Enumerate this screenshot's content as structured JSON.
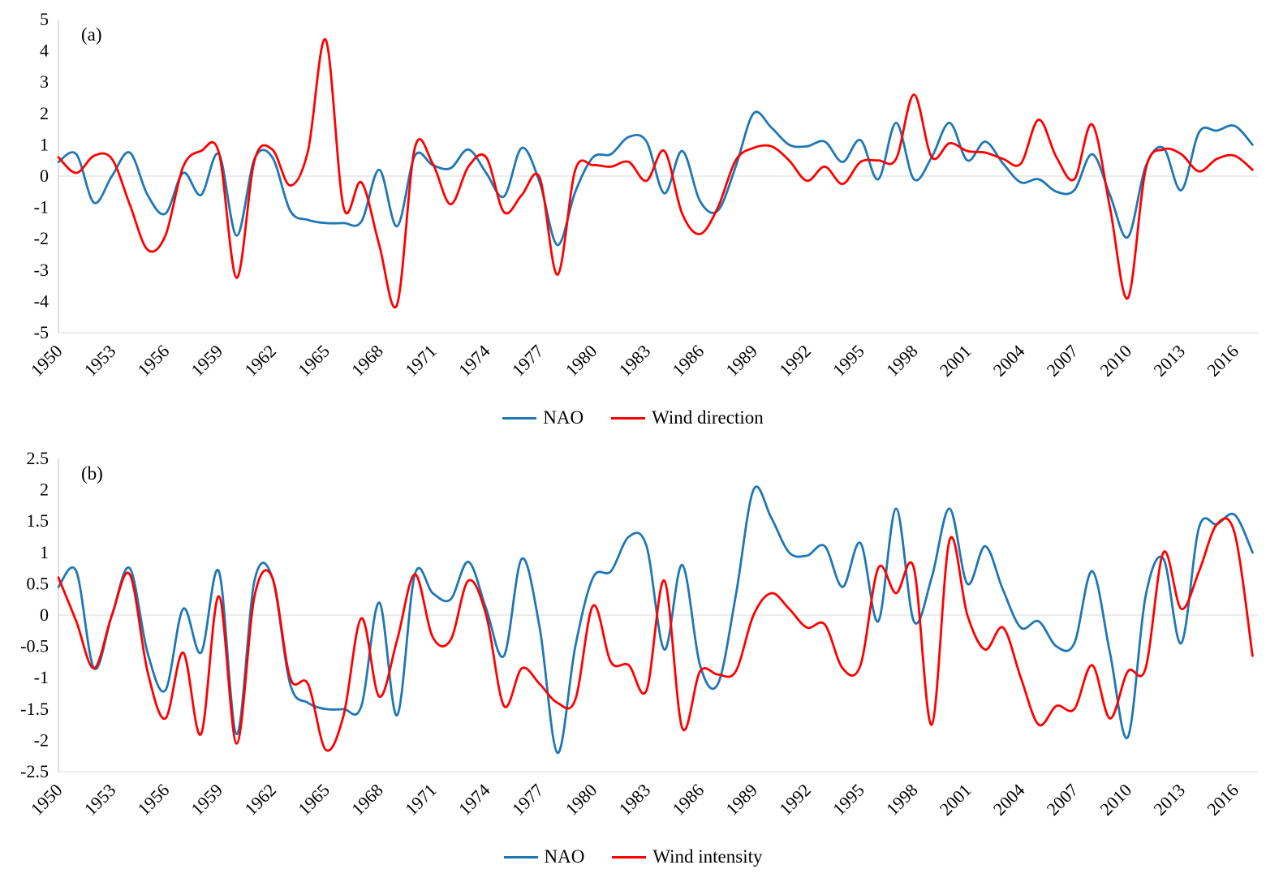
{
  "page": {
    "background": "#ffffff",
    "text_color": "#000000",
    "gridline_color": "#d9d9d9",
    "axis_color": "#bfbfbf"
  },
  "chart_data": [
    {
      "type": "line",
      "panel_label": "(a)",
      "title": "",
      "xlabel": "",
      "ylabel": "",
      "x": [
        1950,
        1951,
        1952,
        1953,
        1954,
        1955,
        1956,
        1957,
        1958,
        1959,
        1960,
        1961,
        1962,
        1963,
        1964,
        1965,
        1966,
        1967,
        1968,
        1969,
        1970,
        1971,
        1972,
        1973,
        1974,
        1975,
        1976,
        1977,
        1978,
        1979,
        1980,
        1981,
        1982,
        1983,
        1984,
        1985,
        1986,
        1987,
        1988,
        1989,
        1990,
        1991,
        1992,
        1993,
        1994,
        1995,
        1996,
        1997,
        1998,
        1999,
        2000,
        2001,
        2002,
        2003,
        2004,
        2005,
        2006,
        2007,
        2008,
        2009,
        2010,
        2011,
        2012,
        2013,
        2014,
        2015,
        2016,
        2017
      ],
      "xtick_labels": [
        "1950",
        "1953",
        "1956",
        "1959",
        "1962",
        "1965",
        "1968",
        "1971",
        "1974",
        "1977",
        "1980",
        "1983",
        "1986",
        "1989",
        "1992",
        "1995",
        "1998",
        "2001",
        "2004",
        "2007",
        "2010",
        "2013",
        "2016"
      ],
      "xticks": [
        1950,
        1953,
        1956,
        1959,
        1962,
        1965,
        1968,
        1971,
        1974,
        1977,
        1980,
        1983,
        1986,
        1989,
        1992,
        1995,
        1998,
        2001,
        2004,
        2007,
        2010,
        2013,
        2016
      ],
      "xlim": [
        1950,
        2017.3
      ],
      "ylim": [
        -5,
        5
      ],
      "ytick_labels": [
        "5",
        "4",
        "3",
        "2",
        "1",
        "0",
        "-1",
        "-2",
        "-3",
        "-4",
        "-5"
      ],
      "yticks": [
        5,
        4,
        3,
        2,
        1,
        0,
        -1,
        -2,
        -3,
        -4,
        -5
      ],
      "grid": "zero line and bottom line only",
      "legend_position": "bottom",
      "series": [
        {
          "name": "NAO",
          "color": "#1F77B4",
          "values": [
            0.45,
            0.7,
            -0.85,
            0.0,
            0.75,
            -0.6,
            -1.2,
            0.1,
            -0.6,
            0.7,
            -1.9,
            0.55,
            0.6,
            -1.1,
            -1.4,
            -1.5,
            -1.5,
            -1.45,
            0.2,
            -1.6,
            0.65,
            0.35,
            0.25,
            0.85,
            0.1,
            -0.65,
            0.9,
            -0.2,
            -2.2,
            -0.5,
            0.6,
            0.7,
            1.25,
            1.1,
            -0.55,
            0.8,
            -0.8,
            -1.1,
            0.3,
            2.0,
            1.55,
            1.0,
            0.95,
            1.1,
            0.45,
            1.15,
            -0.1,
            1.7,
            -0.1,
            0.6,
            1.7,
            0.5,
            1.1,
            0.4,
            -0.2,
            -0.1,
            -0.5,
            -0.45,
            0.7,
            -0.6,
            -1.95,
            0.3,
            0.9,
            -0.45,
            1.4,
            1.45,
            1.6,
            1.0
          ]
        },
        {
          "name": "Wind direction",
          "color": "#FF0000",
          "values": [
            0.6,
            0.1,
            0.65,
            0.55,
            -0.9,
            -2.35,
            -1.9,
            0.3,
            0.8,
            0.75,
            -3.25,
            0.5,
            0.85,
            -0.3,
            0.8,
            4.35,
            -1.0,
            -0.2,
            -2.2,
            -4.1,
            0.9,
            0.4,
            -0.9,
            0.3,
            0.6,
            -1.15,
            -0.6,
            -0.05,
            -3.15,
            0.2,
            0.35,
            0.3,
            0.45,
            -0.15,
            0.8,
            -1.2,
            -1.85,
            -1.0,
            0.5,
            0.9,
            0.95,
            0.5,
            -0.15,
            0.3,
            -0.25,
            0.45,
            0.5,
            0.55,
            2.6,
            0.6,
            1.05,
            0.8,
            0.75,
            0.55,
            0.4,
            1.8,
            0.6,
            -0.1,
            1.65,
            -1.0,
            -3.9,
            0.2,
            0.85,
            0.7,
            0.15,
            0.55,
            0.65,
            0.2
          ]
        }
      ]
    },
    {
      "type": "line",
      "panel_label": "(b)",
      "title": "",
      "xlabel": "",
      "ylabel": "",
      "x": [
        1950,
        1951,
        1952,
        1953,
        1954,
        1955,
        1956,
        1957,
        1958,
        1959,
        1960,
        1961,
        1962,
        1963,
        1964,
        1965,
        1966,
        1967,
        1968,
        1969,
        1970,
        1971,
        1972,
        1973,
        1974,
        1975,
        1976,
        1977,
        1978,
        1979,
        1980,
        1981,
        1982,
        1983,
        1984,
        1985,
        1986,
        1987,
        1988,
        1989,
        1990,
        1991,
        1992,
        1993,
        1994,
        1995,
        1996,
        1997,
        1998,
        1999,
        2000,
        2001,
        2002,
        2003,
        2004,
        2005,
        2006,
        2007,
        2008,
        2009,
        2010,
        2011,
        2012,
        2013,
        2014,
        2015,
        2016,
        2017
      ],
      "xtick_labels": [
        "1950",
        "1953",
        "1956",
        "1959",
        "1962",
        "1965",
        "1968",
        "1971",
        "1974",
        "1977",
        "1980",
        "1983",
        "1986",
        "1989",
        "1992",
        "1995",
        "1998",
        "2001",
        "2004",
        "2007",
        "2010",
        "2013",
        "2016"
      ],
      "xticks": [
        1950,
        1953,
        1956,
        1959,
        1962,
        1965,
        1968,
        1971,
        1974,
        1977,
        1980,
        1983,
        1986,
        1989,
        1992,
        1995,
        1998,
        2001,
        2004,
        2007,
        2010,
        2013,
        2016
      ],
      "xlim": [
        1950,
        2017.3
      ],
      "ylim": [
        -2.5,
        2.5
      ],
      "ytick_labels": [
        "2.5",
        "2",
        "1.5",
        "1",
        "0.5",
        "0",
        "-0.5",
        "-1",
        "-1.5",
        "-2",
        "-2.5"
      ],
      "yticks": [
        2.5,
        2,
        1.5,
        1,
        0.5,
        0,
        -0.5,
        -1,
        -1.5,
        -2,
        -2.5
      ],
      "grid": "zero line and bottom line only",
      "legend_position": "bottom",
      "series": [
        {
          "name": "NAO",
          "color": "#1F77B4",
          "values": [
            0.45,
            0.7,
            -0.85,
            0.0,
            0.75,
            -0.6,
            -1.2,
            0.1,
            -0.6,
            0.7,
            -1.9,
            0.55,
            0.6,
            -1.1,
            -1.4,
            -1.5,
            -1.5,
            -1.45,
            0.2,
            -1.6,
            0.65,
            0.35,
            0.25,
            0.85,
            0.1,
            -0.65,
            0.9,
            -0.2,
            -2.2,
            -0.5,
            0.6,
            0.7,
            1.25,
            1.1,
            -0.55,
            0.8,
            -0.8,
            -1.1,
            0.3,
            2.0,
            1.55,
            1.0,
            0.95,
            1.1,
            0.45,
            1.15,
            -0.1,
            1.7,
            -0.1,
            0.6,
            1.7,
            0.5,
            1.1,
            0.4,
            -0.2,
            -0.1,
            -0.5,
            -0.45,
            0.7,
            -0.6,
            -1.95,
            0.3,
            0.9,
            -0.45,
            1.4,
            1.45,
            1.6,
            1.0
          ]
        },
        {
          "name": "Wind intensity",
          "color": "#FF0000",
          "values": [
            0.6,
            -0.1,
            -0.85,
            0.0,
            0.65,
            -0.9,
            -1.65,
            -0.6,
            -1.9,
            0.3,
            -2.05,
            0.3,
            0.6,
            -1.0,
            -1.1,
            -2.15,
            -1.6,
            -0.05,
            -1.3,
            -0.4,
            0.65,
            -0.35,
            -0.4,
            0.55,
            0.0,
            -1.45,
            -0.85,
            -1.1,
            -1.4,
            -1.35,
            0.15,
            -0.75,
            -0.8,
            -1.2,
            0.55,
            -1.8,
            -0.9,
            -0.95,
            -0.9,
            0.0,
            0.35,
            0.1,
            -0.2,
            -0.15,
            -0.85,
            -0.8,
            0.75,
            0.35,
            0.75,
            -1.75,
            1.2,
            0.0,
            -0.55,
            -0.2,
            -1.0,
            -1.75,
            -1.45,
            -1.5,
            -0.8,
            -1.65,
            -0.9,
            -0.85,
            1.0,
            0.1,
            0.7,
            1.45,
            1.3,
            -0.65
          ]
        }
      ]
    }
  ]
}
